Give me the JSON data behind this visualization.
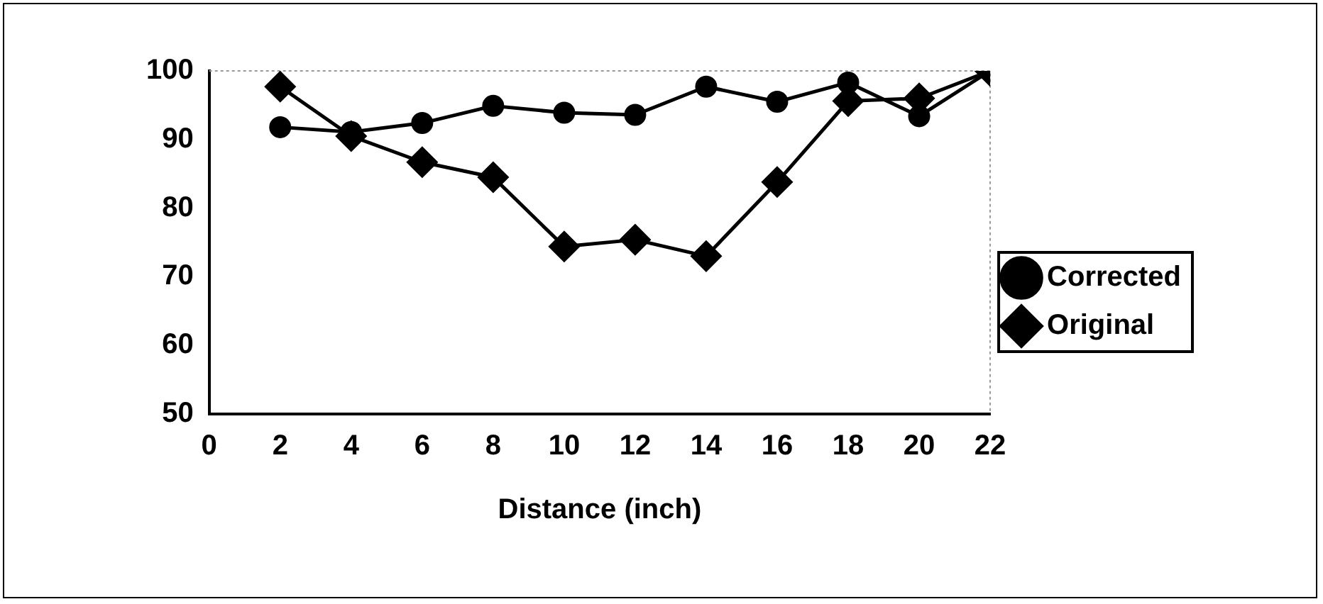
{
  "chart_data": {
    "type": "line",
    "xlabel": "Distance (inch)",
    "x": [
      2,
      4,
      6,
      8,
      10,
      12,
      14,
      16,
      18,
      20,
      22
    ],
    "series": [
      {
        "name": "Original",
        "color": "#000000",
        "marker": "diamond",
        "values": [
          97.7,
          90.5,
          86.7,
          84.5,
          74.4,
          75.4,
          73,
          83.8,
          95.6,
          96,
          100
        ]
      },
      {
        "name": "Corrected",
        "color": "#000000",
        "marker": "circle",
        "values": [
          91.8,
          91.1,
          92.4,
          94.9,
          93.9,
          93.6,
          97.7,
          95.5,
          98.3,
          93.4,
          100
        ]
      }
    ],
    "xlim": [
      0,
      22
    ],
    "xticks": [
      0,
      2,
      4,
      6,
      8,
      10,
      12,
      14,
      16,
      18,
      20,
      22
    ],
    "ylim": [
      50,
      100
    ],
    "yticks": [
      50,
      60,
      70,
      80,
      90,
      100
    ],
    "grid": false,
    "legend": "right",
    "line_style": "solid"
  }
}
